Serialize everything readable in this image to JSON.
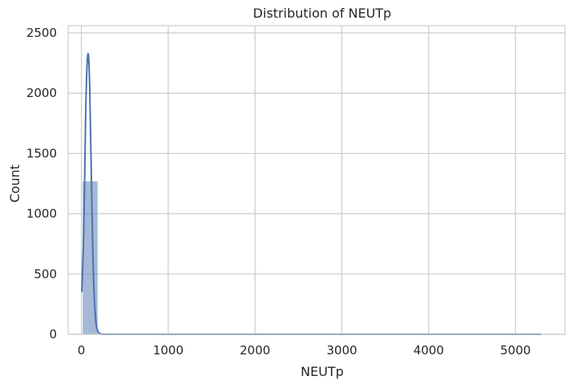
{
  "chart_data": {
    "type": "bar",
    "title": "Distribution of NEUTp",
    "xlabel": "NEUTp",
    "ylabel": "Count",
    "xlim": [
      -153,
      5570
    ],
    "ylim": [
      0,
      2560
    ],
    "xticks": [
      0,
      1000,
      2000,
      3000,
      4000,
      5000
    ],
    "yticks": [
      0,
      500,
      1000,
      1500,
      2000,
      2500
    ],
    "grid": true,
    "bar_color": "#4c72b0",
    "line_color": "#4c72b0",
    "bins": {
      "edges": [
        13,
        189
      ],
      "counts": [
        1270
      ]
    },
    "small_bins": [
      {
        "x0": 189,
        "x1": 365,
        "count": 2
      },
      {
        "x0": 365,
        "x1": 541,
        "count": 1
      },
      {
        "x0": 5120,
        "x1": 5296,
        "count": 1
      }
    ],
    "kde": {
      "x": [
        5,
        30,
        55,
        85,
        110,
        135,
        160,
        185,
        210,
        240,
        300,
        600,
        1000,
        2000,
        3000,
        4000,
        5000,
        5300
      ],
      "y": [
        350,
        900,
        2150,
        2440,
        1500,
        520,
        120,
        25,
        5,
        0,
        0,
        0,
        0,
        0,
        0,
        0,
        0,
        0
      ]
    }
  }
}
